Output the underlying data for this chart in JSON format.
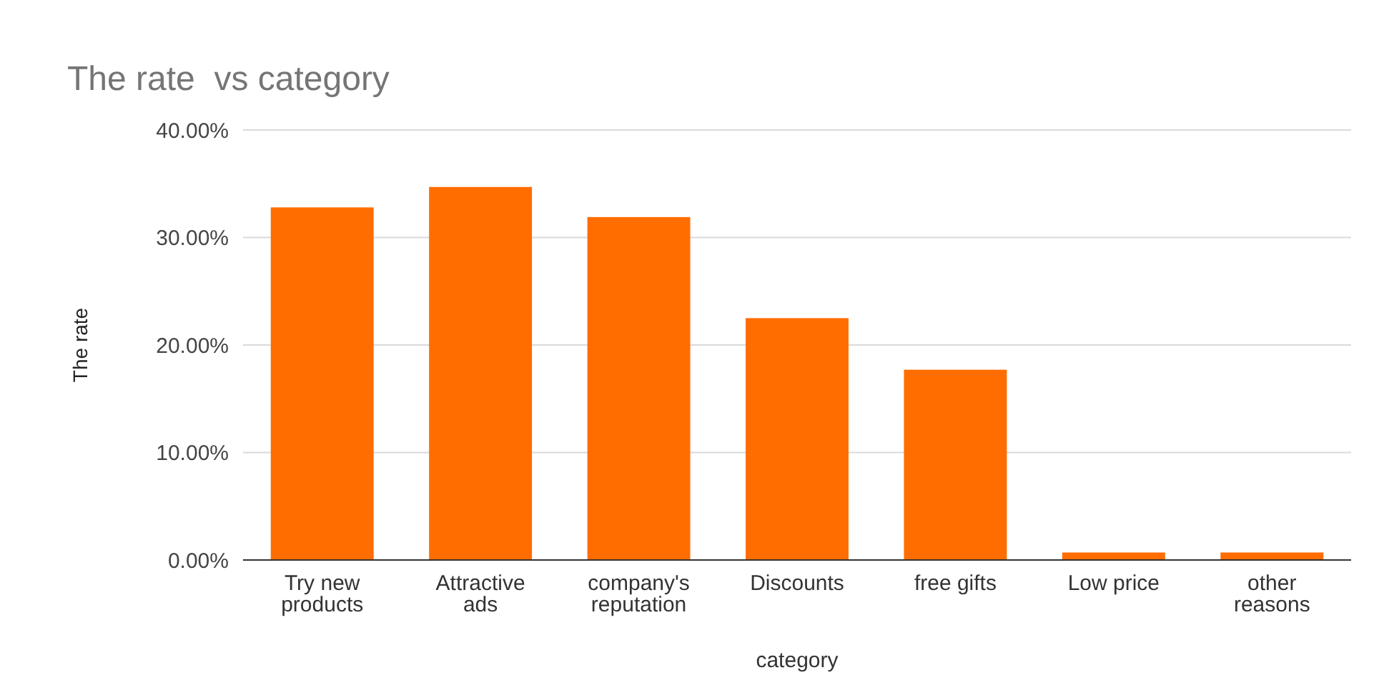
{
  "chart_data": {
    "type": "bar",
    "title": "The rate  vs category",
    "xlabel": "category",
    "ylabel": "The rate",
    "categories": [
      "Try new products",
      "Attractive ads",
      "company's reputation",
      "Discounts",
      "free gifts",
      "Low price",
      "other reasons"
    ],
    "values": [
      32.8,
      34.7,
      31.9,
      22.5,
      17.7,
      0.7,
      0.7
    ],
    "color": "#ff6d01",
    "ylim": [
      0,
      40
    ],
    "yticks": [
      {
        "value": 0,
        "label": "0.00%"
      },
      {
        "value": 10,
        "label": "10.00%"
      },
      {
        "value": 20,
        "label": "20.00%"
      },
      {
        "value": 30,
        "label": "30.00%"
      },
      {
        "value": 40,
        "label": "40.00%"
      }
    ],
    "grid": true
  }
}
